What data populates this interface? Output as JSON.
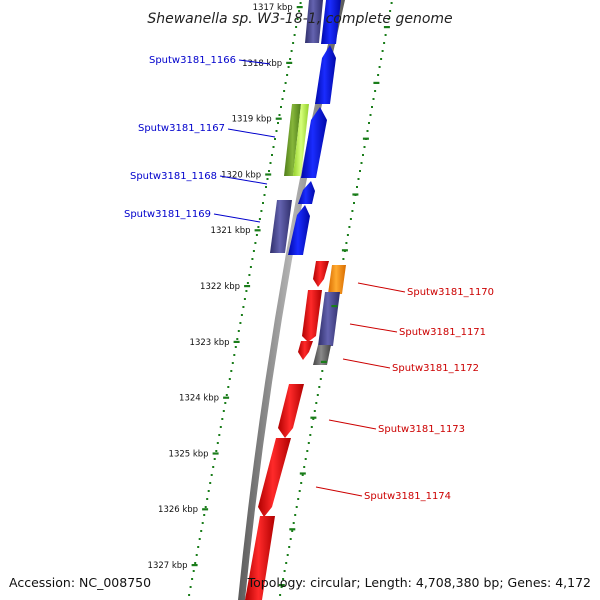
{
  "title": "Shewanella sp. W3-18-1, complete genome",
  "accession": "Accession: NC_008750",
  "topology": "Topology: circular; Length: 4,708,380 bp; Genes: 4,172",
  "colors": {
    "backbone": "#8a8a8a",
    "tick": "#1a7d1a",
    "label_forward": "#0000cc",
    "label_reverse": "#cc0000",
    "blue": "#0a14e6",
    "red": "#e60d0d",
    "orange": "#ff9000",
    "slate": "#4b4a8e",
    "olive": "#6f9e2c",
    "lime": "#b9ee4a",
    "gray": "#6a6a6a"
  },
  "kbp_labels": [
    {
      "value": 1317,
      "text": "1317 kbp"
    },
    {
      "value": 1318,
      "text": "1318 kbp"
    },
    {
      "value": 1319,
      "text": "1319 kbp"
    },
    {
      "value": 1320,
      "text": "1320 kbp"
    },
    {
      "value": 1321,
      "text": "1321 kbp"
    },
    {
      "value": 1322,
      "text": "1322 kbp"
    },
    {
      "value": 1323,
      "text": "1323 kbp"
    },
    {
      "value": 1324,
      "text": "1324 kbp"
    },
    {
      "value": 1325,
      "text": "1325 kbp"
    },
    {
      "value": 1326,
      "text": "1326 kbp"
    },
    {
      "value": 1327,
      "text": "1327 kbp"
    }
  ],
  "genes": [
    {
      "label": "Sputw3181_1166",
      "strand": "forward"
    },
    {
      "label": "Sputw3181_1167",
      "strand": "forward"
    },
    {
      "label": "Sputw3181_1168",
      "strand": "forward"
    },
    {
      "label": "Sputw3181_1169",
      "strand": "forward"
    },
    {
      "label": "Sputw3181_1170",
      "strand": "reverse"
    },
    {
      "label": "Sputw3181_1171",
      "strand": "reverse"
    },
    {
      "label": "Sputw3181_1172",
      "strand": "reverse"
    },
    {
      "label": "Sputw3181_1173",
      "strand": "reverse"
    },
    {
      "label": "Sputw3181_1174",
      "strand": "reverse"
    }
  ]
}
